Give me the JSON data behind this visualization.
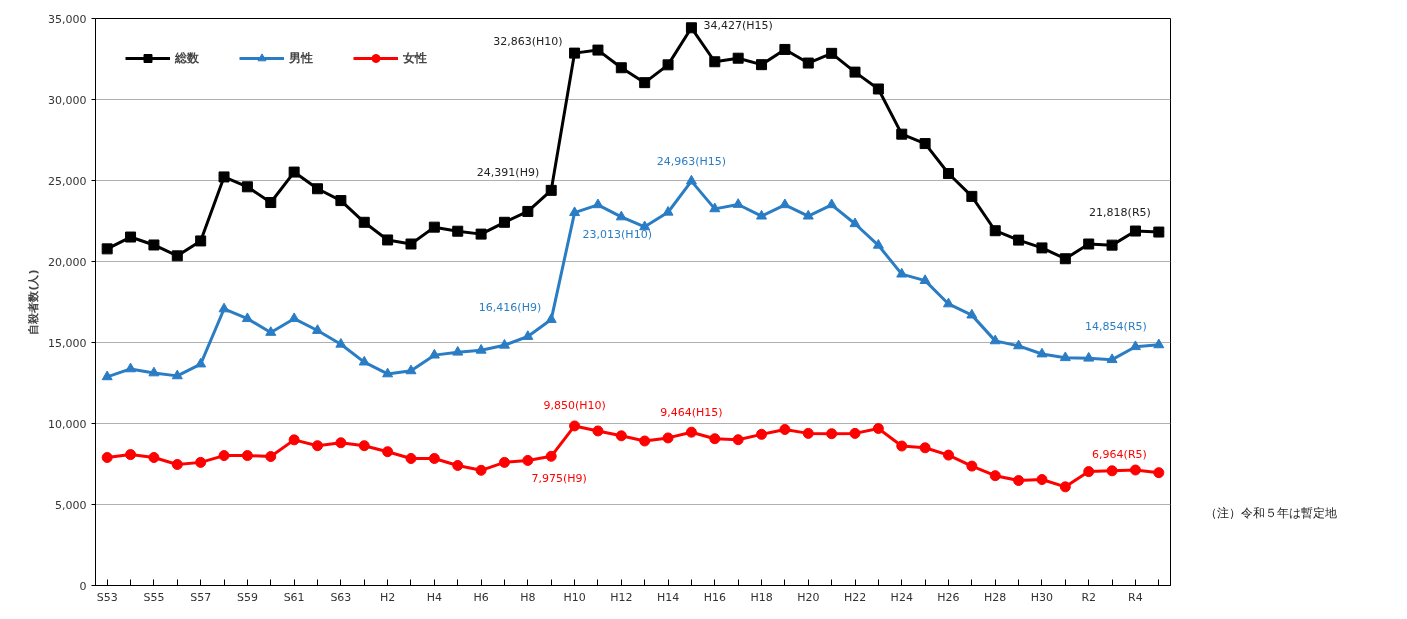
{
  "chart_data": {
    "type": "line",
    "ylabel": "自殺者数(人)",
    "categories": [
      "S53",
      null,
      "S55",
      null,
      "S57",
      null,
      "S59",
      null,
      "S61",
      null,
      "S63",
      null,
      "H2",
      null,
      "H4",
      null,
      "H6",
      null,
      "H8",
      null,
      "H10",
      null,
      "H12",
      null,
      "H14",
      null,
      "H16",
      null,
      "H18",
      null,
      "H20",
      null,
      "H22",
      null,
      "H24",
      null,
      "H26",
      null,
      "H28",
      null,
      "H30",
      null,
      "R2",
      null,
      "R4",
      null
    ],
    "series": [
      {
        "name": "総数",
        "color": "#000000",
        "marker": "square",
        "values": [
          20780,
          21510,
          21020,
          20350,
          21270,
          25220,
          24610,
          23640,
          25520,
          24490,
          23760,
          22420,
          21330,
          21080,
          22120,
          21870,
          21690,
          22420,
          23090,
          24391,
          32863,
          33050,
          31960,
          31040,
          32140,
          34427,
          32330,
          32550,
          32150,
          33090,
          32250,
          32850,
          31690,
          30650,
          27860,
          27280,
          25430,
          24020,
          21900,
          21320,
          20840,
          20170,
          21080,
          21010,
          21880,
          21818
        ],
        "value_labels": [
          null,
          null,
          null,
          null,
          null,
          null,
          null,
          null,
          null,
          null,
          null,
          null,
          null,
          null,
          null,
          null,
          null,
          null,
          null,
          "24,391(H9)",
          "32,863(H10)",
          null,
          null,
          null,
          null,
          "34,427(H15)",
          null,
          null,
          null,
          null,
          null,
          null,
          null,
          null,
          null,
          null,
          null,
          null,
          null,
          null,
          null,
          null,
          null,
          null,
          null,
          "21,818(R5)"
        ]
      },
      {
        "name": "男性",
        "color": "#2a7dc4",
        "marker": "triangle",
        "values": [
          12880,
          13370,
          13120,
          12940,
          13670,
          17070,
          16470,
          15620,
          16470,
          15740,
          14890,
          13790,
          13060,
          13250,
          14220,
          14400,
          14520,
          14830,
          15370,
          16416,
          23013,
          23500,
          22750,
          22140,
          23040,
          24963,
          23250,
          23520,
          22800,
          23500,
          22800,
          23500,
          22330,
          21000,
          19220,
          18820,
          17380,
          16690,
          15100,
          14790,
          14290,
          14060,
          14030,
          13940,
          14740,
          14854
        ],
        "value_labels": [
          null,
          null,
          null,
          null,
          null,
          null,
          null,
          null,
          null,
          null,
          null,
          null,
          null,
          null,
          null,
          null,
          null,
          null,
          null,
          "16,416(H9)",
          "23,013(H10)",
          null,
          null,
          null,
          null,
          "24,963(H15)",
          null,
          null,
          null,
          null,
          null,
          null,
          null,
          null,
          null,
          null,
          null,
          null,
          null,
          null,
          null,
          null,
          null,
          null,
          null,
          "14,854(R5)"
        ]
      },
      {
        "name": "女性",
        "color": "#ff0000",
        "marker": "circle",
        "values": [
          7900,
          8080,
          7900,
          7470,
          7600,
          8020,
          8020,
          7960,
          8990,
          8630,
          8810,
          8630,
          8260,
          7840,
          7840,
          7410,
          7110,
          7600,
          7720,
          7975,
          9850,
          9540,
          9240,
          8920,
          9110,
          9464,
          9060,
          9000,
          9330,
          9630,
          9390,
          9370,
          9390,
          9690,
          8610,
          8500,
          8050,
          7370,
          6780,
          6480,
          6540,
          6090,
          7030,
          7080,
          7130,
          6964
        ],
        "value_labels": [
          null,
          null,
          null,
          null,
          null,
          null,
          null,
          null,
          null,
          null,
          null,
          null,
          null,
          null,
          null,
          null,
          null,
          null,
          null,
          "7,975(H9)",
          "9,850(H10)",
          null,
          null,
          null,
          null,
          "9,464(H15)",
          null,
          null,
          null,
          null,
          null,
          null,
          null,
          null,
          null,
          null,
          null,
          null,
          null,
          null,
          null,
          null,
          null,
          null,
          null,
          "6,964(R5)"
        ]
      }
    ],
    "ylim": [
      0,
      35000
    ],
    "yticks": [
      0,
      {
        "value": 5000,
        "label": "5,000"
      },
      {
        "value": 10000,
        "label": "10,000"
      },
      {
        "value": 15000,
        "label": "15,000"
      },
      {
        "value": 20000,
        "label": "20,000"
      },
      {
        "value": 25000,
        "label": "25,000"
      },
      {
        "value": 30000,
        "label": "30,000"
      },
      {
        "value": 35000,
        "label": "35,000"
      }
    ],
    "grid": "y",
    "legend": "top left",
    "line_style": "solid",
    "annotations": [
      "（注）令和５年は暫定地"
    ]
  }
}
